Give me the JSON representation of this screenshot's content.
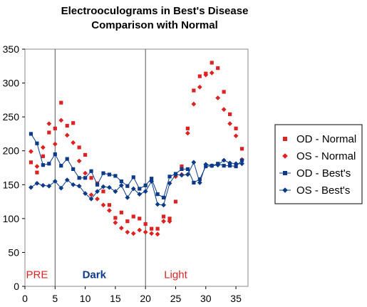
{
  "chart_data": {
    "type": "scatter",
    "title": [
      "Electrooculograms in Best's Disease",
      "Comparison with Normal"
    ],
    "xlim": [
      0,
      37
    ],
    "ylim": [
      0,
      350
    ],
    "x_ticks": [
      0,
      5,
      10,
      15,
      20,
      25,
      30,
      35
    ],
    "y_ticks": [
      0,
      50,
      100,
      150,
      200,
      250,
      300,
      350
    ],
    "grid": false,
    "legend_position": "right",
    "phase_dividers": [
      5,
      20
    ],
    "phase_labels": [
      {
        "text": "PRE",
        "x": 2,
        "color": "#dd2222"
      },
      {
        "text": "Dark",
        "x": 11.5,
        "color": "#0b3a8a",
        "bold": true
      },
      {
        "text": "Light",
        "x": 25,
        "color": "#dd2222"
      }
    ],
    "series": [
      {
        "name": "OD - Normal",
        "marker": "square",
        "color": "#dd2222",
        "line": false,
        "x": [
          1,
          2,
          3,
          4,
          5,
          6,
          7,
          8,
          9,
          10,
          11,
          12,
          13,
          14,
          15,
          16,
          17,
          18,
          19,
          20,
          21,
          22,
          23,
          24,
          25,
          26,
          27,
          28,
          29,
          30,
          31,
          32,
          33,
          34,
          35,
          36
        ],
        "y": [
          183,
          168,
          192,
          227,
          233,
          271,
          237,
          241,
          205,
          194,
          160,
          152,
          140,
          120,
          101,
          109,
          96,
          103,
          100,
          92,
          85,
          85,
          103,
          100,
          125,
          177,
          233,
          289,
          310,
          314,
          330,
          322,
          287,
          254,
          233,
          203
        ]
      },
      {
        "name": "OS - Normal",
        "marker": "diamond",
        "color": "#dd2222",
        "line": false,
        "x": [
          1,
          2,
          3,
          4,
          5,
          6,
          7,
          8,
          9,
          10,
          11,
          12,
          13,
          14,
          15,
          16,
          17,
          18,
          19,
          20,
          21,
          22,
          23,
          24,
          25,
          26,
          27,
          28,
          29,
          30,
          31,
          32,
          33,
          34,
          35,
          36
        ],
        "y": [
          199,
          177,
          205,
          240,
          210,
          245,
          223,
          212,
          185,
          167,
          135,
          129,
          120,
          112,
          94,
          86,
          80,
          78,
          83,
          80,
          78,
          77,
          96,
          96,
          162,
          165,
          226,
          269,
          294,
          312,
          315,
          278,
          261,
          240,
          222,
          187
        ]
      },
      {
        "name": "OD - Best's",
        "marker": "square",
        "color": "#0b3a8a",
        "line": true,
        "x": [
          1,
          2,
          3,
          4,
          5,
          6,
          7,
          8,
          9,
          10,
          11,
          12,
          13,
          14,
          15,
          16,
          17,
          18,
          19,
          20,
          21,
          22,
          23,
          24,
          25,
          26,
          27,
          28,
          29,
          30,
          31,
          32,
          33,
          34,
          35,
          36
        ],
        "y": [
          225,
          211,
          179,
          181,
          195,
          178,
          188,
          173,
          160,
          160,
          170,
          150,
          167,
          165,
          163,
          155,
          148,
          161,
          144,
          149,
          159,
          136,
          131,
          162,
          166,
          173,
          173,
          153,
          158,
          177,
          178,
          181,
          178,
          178,
          177,
          186
        ]
      },
      {
        "name": "OS - Best's",
        "marker": "diamond",
        "color": "#0b3a8a",
        "line": true,
        "x": [
          1,
          2,
          3,
          4,
          5,
          6,
          7,
          8,
          9,
          10,
          11,
          12,
          13,
          14,
          15,
          16,
          17,
          18,
          19,
          20,
          21,
          22,
          23,
          24,
          25,
          26,
          27,
          28,
          29,
          30,
          31,
          32,
          33,
          34,
          35,
          36
        ],
        "y": [
          146,
          152,
          149,
          148,
          155,
          145,
          157,
          150,
          148,
          137,
          129,
          140,
          147,
          146,
          140,
          149,
          131,
          144,
          136,
          140,
          155,
          121,
          120,
          152,
          165,
          164,
          165,
          183,
          153,
          180,
          178,
          179,
          186,
          182,
          181,
          181
        ]
      }
    ]
  }
}
